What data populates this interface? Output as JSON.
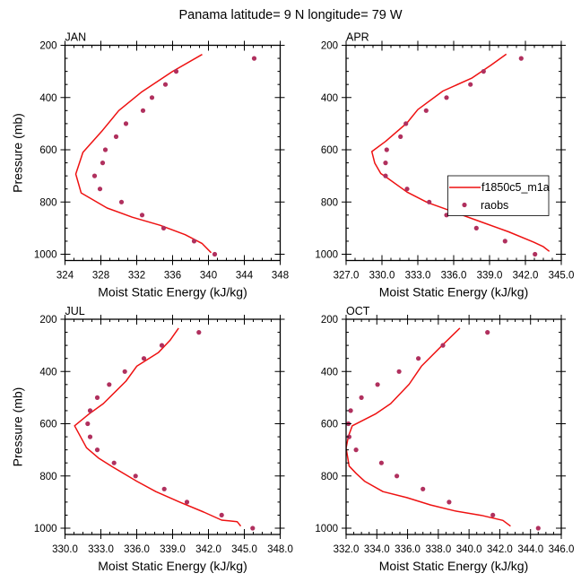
{
  "title": "Panama  latitude= 9 N longitude= 79 W",
  "colors": {
    "model_line": "#ee1111",
    "obs_marker": "#b0305e",
    "frame": "#000000"
  },
  "legend": {
    "placement": "inside APR panel, right-center",
    "entries": [
      {
        "label": "f1850c5_m1a",
        "type": "line"
      },
      {
        "label": "raobs",
        "type": "marker"
      }
    ]
  },
  "chart_data": [
    {
      "type": "line",
      "panel": "JAN",
      "title": "JAN",
      "xlabel": "Moist Static Energy (kJ/kg)",
      "ylabel": "Pressure (mb)",
      "xlim": [
        324,
        348
      ],
      "ylim": [
        200,
        1024
      ],
      "y_inverted": true,
      "xticks": [
        "324",
        "328",
        "332",
        "336",
        "340",
        "344",
        "348"
      ],
      "xtick_values": [
        324,
        328,
        332,
        336,
        340,
        344,
        348
      ],
      "xminor_step": 1,
      "yticks": [
        "200",
        "400",
        "600",
        "800",
        "1000"
      ],
      "ytick_values": [
        200,
        400,
        600,
        800,
        1000
      ],
      "yminor_step": 50,
      "series": [
        {
          "name": "f1850c5_m1a",
          "kind": "line",
          "x": [
            339.3,
            336.0,
            332.5,
            330.0,
            328.2,
            326.0,
            325.2,
            325.8,
            328.7,
            331.5,
            334.6,
            337.4,
            339.3,
            340.3
          ],
          "y": [
            235,
            300,
            380,
            450,
            525,
            610,
            693,
            765,
            823,
            858,
            889,
            925,
            959,
            994
          ]
        },
        {
          "name": "raobs",
          "kind": "scatter",
          "x": [
            345.1,
            336.4,
            335.2,
            333.7,
            332.7,
            330.8,
            329.7,
            328.5,
            328.2,
            327.3,
            327.9,
            330.3,
            332.6,
            335.0,
            338.4,
            340.7
          ],
          "y": [
            250,
            300,
            350,
            400,
            450,
            500,
            550,
            600,
            650,
            700,
            750,
            800,
            850,
            900,
            950,
            1000
          ]
        }
      ]
    },
    {
      "type": "line",
      "panel": "APR",
      "title": "APR",
      "xlabel": "Moist Static Energy (kJ/kg)",
      "ylabel": "",
      "xlim": [
        327,
        345
      ],
      "ylim": [
        200,
        1024
      ],
      "y_inverted": true,
      "xticks": [
        "327.0",
        "330.0",
        "333.0",
        "336.0",
        "339.0",
        "342.0",
        "345.0"
      ],
      "xtick_values": [
        327,
        330,
        333,
        336,
        339,
        342,
        345
      ],
      "xminor_step": 0.75,
      "yticks": [
        "200",
        "400",
        "600",
        "800",
        "1000"
      ],
      "ytick_values": [
        200,
        400,
        600,
        800,
        1000
      ],
      "yminor_step": 50,
      "series": [
        {
          "name": "f1850c5_m1a",
          "kind": "line",
          "x": [
            340.4,
            339.1,
            337.5,
            335.1,
            333.0,
            332.1,
            330.3,
            329.15,
            329.4,
            329.9,
            330.3,
            332.1,
            333.8,
            336.0,
            338.1,
            340.6,
            342.7,
            343.5,
            344.0
          ],
          "y": [
            234,
            277,
            326,
            375,
            446,
            497,
            568,
            607,
            651,
            691,
            703,
            762,
            802,
            838,
            873,
            914,
            954,
            971,
            989
          ]
        },
        {
          "name": "raobs",
          "kind": "scatter",
          "x": [
            341.65,
            338.5,
            337.4,
            335.4,
            333.7,
            332.0,
            331.55,
            330.4,
            330.3,
            330.3,
            332.1,
            333.95,
            335.4,
            337.9,
            340.3,
            342.8
          ],
          "y": [
            250,
            300,
            350,
            400,
            450,
            500,
            550,
            600,
            650,
            700,
            750,
            800,
            850,
            900,
            950,
            1000
          ]
        }
      ]
    },
    {
      "type": "line",
      "panel": "JUL",
      "title": "JUL",
      "xlabel": "Moist Static Energy (kJ/kg)",
      "ylabel": "Pressure (mb)",
      "xlim": [
        330,
        348
      ],
      "ylim": [
        200,
        1024
      ],
      "y_inverted": true,
      "xticks": [
        "330.0",
        "333.0",
        "336.0",
        "339.0",
        "342.0",
        "345.0",
        "348.0"
      ],
      "xtick_values": [
        330,
        333,
        336,
        339,
        342,
        345,
        348
      ],
      "xminor_step": 0.75,
      "yticks": [
        "200",
        "400",
        "600",
        "800",
        "1000"
      ],
      "ytick_values": [
        200,
        400,
        600,
        800,
        1000
      ],
      "yminor_step": 50,
      "series": [
        {
          "name": "f1850c5_m1a",
          "kind": "line",
          "x": [
            339.5,
            338.8,
            337.8,
            336.0,
            335.1,
            333.2,
            332.0,
            330.8,
            331.8,
            332.8,
            333.9,
            336.0,
            337.6,
            339.6,
            341.6,
            343.1,
            344.4,
            344.7
          ],
          "y": [
            234,
            280,
            328,
            380,
            437,
            523,
            563,
            608,
            692,
            731,
            763,
            820,
            860,
            900,
            938,
            969,
            975,
            992
          ]
        },
        {
          "name": "raobs",
          "kind": "scatter",
          "x": [
            341.2,
            338.1,
            336.6,
            335.0,
            333.7,
            332.7,
            332.1,
            331.9,
            332.1,
            332.7,
            334.1,
            335.9,
            338.3,
            340.2,
            343.1,
            345.7
          ],
          "y": [
            250,
            300,
            350,
            400,
            450,
            500,
            550,
            600,
            650,
            700,
            750,
            800,
            850,
            900,
            950,
            1000
          ]
        }
      ]
    },
    {
      "type": "line",
      "panel": "OCT",
      "title": "OCT",
      "xlabel": "Moist Static Energy (kJ/kg)",
      "ylabel": "",
      "xlim": [
        332,
        346
      ],
      "ylim": [
        200,
        1024
      ],
      "y_inverted": true,
      "xticks": [
        "332.0",
        "334.0",
        "336.0",
        "338.0",
        "340.0",
        "342.0",
        "344.0",
        "346.0"
      ],
      "xtick_values": [
        332,
        334,
        336,
        338,
        340,
        342,
        344,
        346
      ],
      "xminor_step": 0.5,
      "yticks": [
        "200",
        "400",
        "600",
        "800",
        "1000"
      ],
      "ytick_values": [
        200,
        400,
        600,
        800,
        1000
      ],
      "yminor_step": 50,
      "series": [
        {
          "name": "f1850c5_m1a",
          "kind": "line",
          "x": [
            339.4,
            338.3,
            336.9,
            336.1,
            334.9,
            333.9,
            332.4,
            332.15,
            332.0,
            332.2,
            332.65,
            333.2,
            334.4,
            335.95,
            337.5,
            339.1,
            340.8,
            342.2,
            342.7
          ],
          "y": [
            234,
            297,
            380,
            449,
            523,
            563,
            608,
            648,
            693,
            762,
            790,
            820,
            860,
            883,
            911,
            934,
            951,
            970,
            992
          ]
        },
        {
          "name": "raobs",
          "kind": "scatter",
          "x": [
            341.2,
            338.3,
            336.7,
            335.45,
            334.05,
            333.0,
            332.3,
            332.15,
            332.2,
            332.65,
            334.3,
            335.3,
            337.0,
            338.7,
            341.55,
            344.5
          ],
          "y": [
            250,
            300,
            350,
            400,
            450,
            500,
            550,
            600,
            650,
            700,
            750,
            800,
            850,
            900,
            950,
            1000
          ]
        }
      ]
    }
  ]
}
